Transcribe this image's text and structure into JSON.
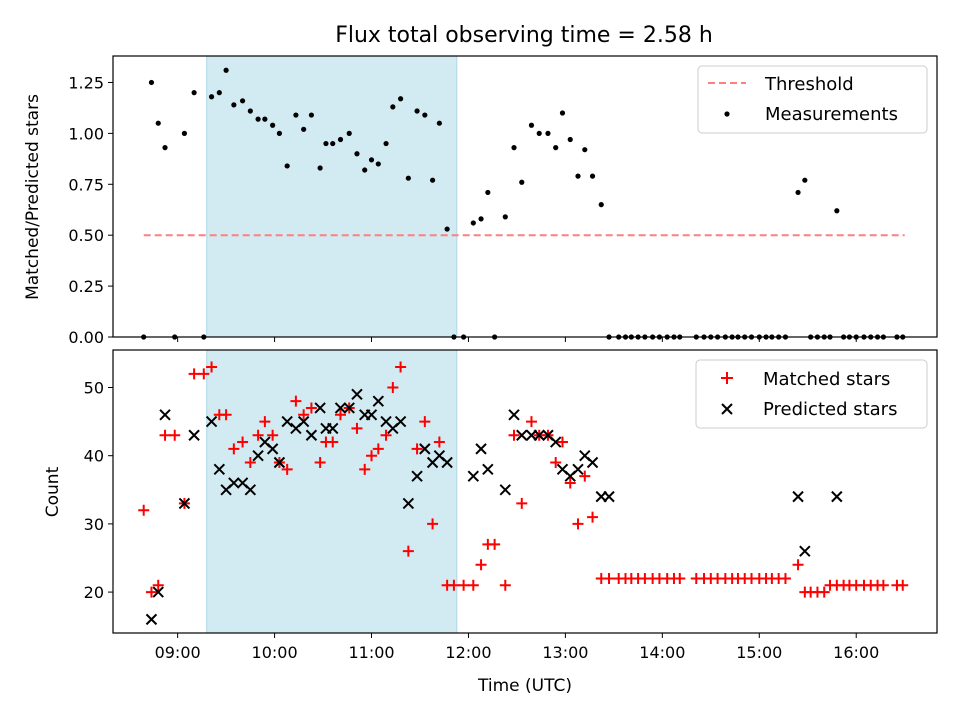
{
  "chart_data": {
    "type": "scatter",
    "title": "Flux total observing time = 2.58 h",
    "xlabel": "Time (UTC)",
    "x_tick_labels": [
      "09:00",
      "10:00",
      "11:00",
      "12:00",
      "13:00",
      "14:00",
      "15:00",
      "16:00"
    ],
    "x_tick_hours": [
      9,
      10,
      11,
      12,
      13,
      14,
      15,
      16
    ],
    "xlim_hours": [
      8.3333,
      16.8333
    ],
    "shaded_span_hours": [
      9.3,
      11.88
    ],
    "shade_color": "#add8e6",
    "top": {
      "ylabel": "Matched/Predicted stars",
      "ylim": [
        0,
        1.38
      ],
      "y_ticks": [
        0.0,
        0.25,
        0.5,
        0.75,
        1.0,
        1.25
      ],
      "y_tick_labels": [
        "0.00",
        "0.25",
        "0.50",
        "0.75",
        "1.00",
        "1.25"
      ],
      "threshold": {
        "name": "Threshold",
        "value": 0.5,
        "x_range": [
          8.65,
          16.5
        ],
        "color": "#ff7f7f"
      },
      "measurements": {
        "name": "Measurements",
        "color": "#000000",
        "x": [
          8.65,
          8.73,
          8.8,
          8.87,
          8.97,
          9.07,
          9.17,
          9.27,
          9.35,
          9.43,
          9.5,
          9.58,
          9.67,
          9.75,
          9.83,
          9.9,
          9.98,
          10.05,
          10.13,
          10.22,
          10.3,
          10.38,
          10.47,
          10.53,
          10.6,
          10.68,
          10.77,
          10.85,
          10.93,
          11.0,
          11.07,
          11.15,
          11.22,
          11.3,
          11.38,
          11.47,
          11.55,
          11.63,
          11.7,
          11.78,
          11.85,
          11.95,
          12.05,
          12.13,
          12.2,
          12.27,
          12.38,
          12.47,
          12.55,
          12.65,
          12.73,
          12.82,
          12.9,
          12.97,
          13.05,
          13.13,
          13.2,
          13.28,
          13.37,
          13.45,
          13.55,
          13.62,
          13.68,
          13.75,
          13.82,
          13.9,
          13.97,
          14.05,
          14.12,
          14.18,
          14.35,
          14.43,
          14.5,
          14.57,
          14.65,
          14.72,
          14.78,
          14.85,
          14.92,
          15.0,
          15.07,
          15.13,
          15.2,
          15.27,
          15.4,
          15.47,
          15.53,
          15.6,
          15.67,
          15.73,
          15.8,
          15.87,
          15.93,
          16.0,
          16.08,
          16.15,
          16.22,
          16.28,
          16.42,
          16.48
        ],
        "y": [
          0.0,
          1.25,
          1.05,
          0.93,
          0.0,
          1.0,
          1.2,
          0.0,
          1.18,
          1.2,
          1.31,
          1.14,
          1.16,
          1.11,
          1.07,
          1.07,
          1.04,
          1.0,
          0.84,
          1.09,
          1.02,
          1.09,
          0.83,
          0.95,
          0.95,
          0.97,
          1.0,
          0.9,
          0.82,
          0.87,
          0.85,
          0.95,
          1.13,
          1.17,
          0.78,
          1.11,
          1.09,
          0.77,
          1.05,
          0.53,
          0.0,
          0.0,
          0.56,
          0.58,
          0.71,
          0.0,
          0.59,
          0.93,
          0.76,
          1.04,
          1.0,
          1.0,
          0.93,
          1.1,
          0.97,
          0.79,
          0.92,
          0.79,
          0.65,
          0.0,
          0.0,
          0.0,
          0.0,
          0.0,
          0.0,
          0.0,
          0.0,
          0.0,
          0.0,
          0.0,
          0.0,
          0.0,
          0.0,
          0.0,
          0.0,
          0.0,
          0.0,
          0.0,
          0.0,
          0.0,
          0.0,
          0.0,
          0.0,
          0.0,
          0.71,
          0.77,
          0.0,
          0.0,
          0.0,
          0.0,
          0.62,
          0.0,
          0.0,
          0.0,
          0.0,
          0.0,
          0.0,
          0.0,
          0.0,
          0.0
        ]
      },
      "legend": [
        "Threshold",
        "Measurements"
      ],
      "legend_placement": "top-right"
    },
    "bottom": {
      "ylabel": "Count",
      "ylim": [
        14,
        55.5
      ],
      "y_ticks": [
        20,
        30,
        40,
        50
      ],
      "y_tick_labels": [
        "20",
        "30",
        "40",
        "50"
      ],
      "matched": {
        "name": "Matched stars",
        "color": "#ff0000",
        "x": [
          8.65,
          8.73,
          8.8,
          8.87,
          8.97,
          9.07,
          9.17,
          9.27,
          9.35,
          9.43,
          9.5,
          9.58,
          9.67,
          9.75,
          9.83,
          9.9,
          9.98,
          10.05,
          10.13,
          10.22,
          10.3,
          10.38,
          10.47,
          10.53,
          10.6,
          10.68,
          10.77,
          10.85,
          10.93,
          11.0,
          11.07,
          11.15,
          11.22,
          11.3,
          11.38,
          11.47,
          11.55,
          11.63,
          11.7,
          11.78,
          11.85,
          11.95,
          12.05,
          12.13,
          12.2,
          12.27,
          12.38,
          12.47,
          12.55,
          12.65,
          12.73,
          12.82,
          12.9,
          12.97,
          13.05,
          13.13,
          13.2,
          13.28,
          13.37,
          13.45,
          13.55,
          13.62,
          13.68,
          13.75,
          13.82,
          13.9,
          13.97,
          14.05,
          14.12,
          14.18,
          14.35,
          14.43,
          14.5,
          14.57,
          14.65,
          14.72,
          14.78,
          14.85,
          14.92,
          15.0,
          15.07,
          15.13,
          15.2,
          15.27,
          15.4,
          15.47,
          15.53,
          15.6,
          15.67,
          15.73,
          15.8,
          15.87,
          15.93,
          16.0,
          16.08,
          16.15,
          16.22,
          16.28,
          16.42,
          16.48
        ],
        "y": [
          32,
          20,
          21,
          43,
          43,
          33,
          52,
          52,
          53,
          46,
          46,
          41,
          42,
          39,
          43,
          45,
          43,
          39,
          38,
          48,
          46,
          47,
          39,
          42,
          42,
          46,
          47,
          44,
          38,
          40,
          41,
          43,
          50,
          53,
          26,
          41,
          45,
          30,
          42,
          21,
          21,
          21,
          21,
          24,
          27,
          27,
          21,
          43,
          33,
          45,
          43,
          43,
          39,
          42,
          36,
          30,
          37,
          31,
          22,
          22,
          22,
          22,
          22,
          22,
          22,
          22,
          22,
          22,
          22,
          22,
          22,
          22,
          22,
          22,
          22,
          22,
          22,
          22,
          22,
          22,
          22,
          22,
          22,
          22,
          24,
          20,
          20,
          20,
          20,
          21,
          21,
          21,
          21,
          21,
          21,
          21,
          21,
          21,
          21,
          21
        ]
      },
      "predicted": {
        "name": "Predicted stars",
        "color": "#000000",
        "x": [
          8.73,
          8.8,
          8.87,
          9.07,
          9.17,
          9.35,
          9.43,
          9.5,
          9.58,
          9.67,
          9.75,
          9.83,
          9.9,
          9.98,
          10.05,
          10.13,
          10.22,
          10.3,
          10.38,
          10.47,
          10.53,
          10.6,
          10.68,
          10.77,
          10.85,
          10.93,
          11.0,
          11.07,
          11.15,
          11.22,
          11.3,
          11.38,
          11.47,
          11.55,
          11.63,
          11.7,
          11.78,
          12.05,
          12.13,
          12.2,
          12.38,
          12.47,
          12.55,
          12.65,
          12.73,
          12.82,
          12.9,
          12.97,
          13.05,
          13.13,
          13.2,
          13.28,
          13.37,
          13.45,
          15.4,
          15.47,
          15.8
        ],
        "y": [
          16,
          20,
          46,
          33,
          43,
          45,
          38,
          35,
          36,
          36,
          35,
          40,
          42,
          41,
          39,
          45,
          44,
          45,
          43,
          47,
          44,
          44,
          47,
          47,
          49,
          46,
          46,
          48,
          45,
          44,
          45,
          33,
          37,
          41,
          39,
          40,
          39,
          37,
          41,
          38,
          35,
          46,
          43,
          43,
          43,
          43,
          42,
          38,
          37,
          38,
          40,
          39,
          34,
          34,
          34,
          26,
          34
        ]
      },
      "legend": [
        "Matched stars",
        "Predicted stars"
      ],
      "legend_placement": "top-right"
    }
  }
}
